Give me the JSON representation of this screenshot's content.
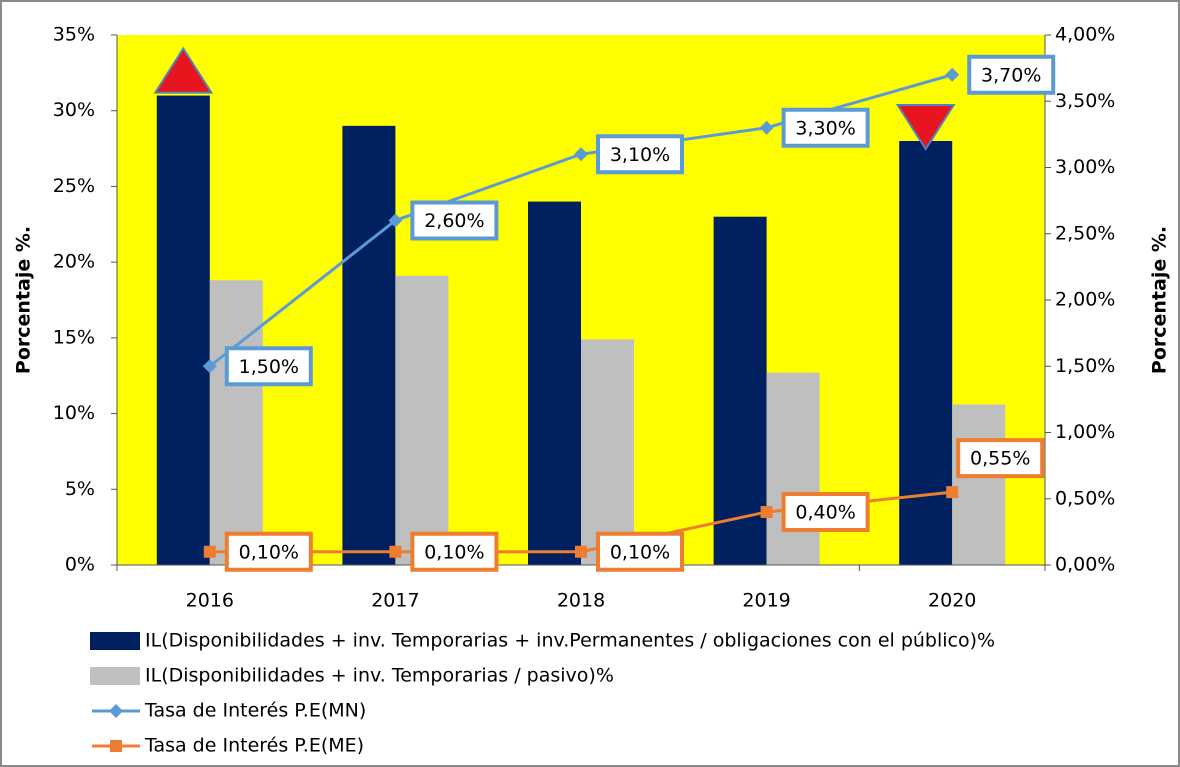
{
  "chart_data": {
    "type": "bar",
    "categories": [
      "2016",
      "2017",
      "2018",
      "2019",
      "2020"
    ],
    "series": [
      {
        "name": "IL(Disponibilidades + inv. Temporarias + inv.Permanentes / obligaciones con el público)%",
        "color": "#002060",
        "values": [
          31,
          29,
          24,
          23,
          28
        ]
      },
      {
        "name": "IL(Disponibilidades + inv. Temporarias / pasivo)%",
        "color": "#BFBFBF",
        "values": [
          18.8,
          19.1,
          14.9,
          12.7,
          10.6
        ]
      },
      {
        "name": "Tasa de Interés P.E(MN)",
        "color": "#5B9BD5",
        "type": "line",
        "axis": "y2",
        "marker": "diamond",
        "values": [
          1.5,
          2.6,
          3.1,
          3.3,
          3.7
        ],
        "value_labels": [
          "1,50%",
          "2,60%",
          "3,10%",
          "3,30%",
          "3,70%"
        ]
      },
      {
        "name": "Tasa de Interés P.E(ME)",
        "color": "#ED7D31",
        "type": "line",
        "axis": "y2",
        "marker": "square",
        "values": [
          0.1,
          0.1,
          0.1,
          0.4,
          0.55
        ],
        "value_labels": [
          "0,10%",
          "0,10%",
          "0,10%",
          "0,40%",
          "0,55%"
        ]
      }
    ],
    "ylabel": "Porcentaje %.",
    "y2label": "Porcentaje %.",
    "ylim": [
      0,
      35
    ],
    "yticks": [
      {
        "value": 0,
        "label": "0%"
      },
      {
        "value": 5,
        "label": "5%"
      },
      {
        "value": 10,
        "label": "10%"
      },
      {
        "value": 15,
        "label": "15%"
      },
      {
        "value": 20,
        "label": "20%"
      },
      {
        "value": 25,
        "label": "25%"
      },
      {
        "value": 30,
        "label": "30%"
      },
      {
        "value": 35,
        "label": "35%"
      }
    ],
    "y2lim": [
      0,
      4
    ],
    "y2ticks": [
      {
        "value": 0,
        "label": "0,00%"
      },
      {
        "value": 0.5,
        "label": "0,50%"
      },
      {
        "value": 1,
        "label": "1,00%"
      },
      {
        "value": 1.5,
        "label": "1,50%"
      },
      {
        "value": 2,
        "label": "2,00%"
      },
      {
        "value": 2.5,
        "label": "2,50%"
      },
      {
        "value": 3,
        "label": "3,00%"
      },
      {
        "value": 3.5,
        "label": "3,50%"
      },
      {
        "value": 4,
        "label": "4,00%"
      }
    ],
    "plot_background": "#FFFF00",
    "grid": false,
    "legend": "bottom"
  }
}
